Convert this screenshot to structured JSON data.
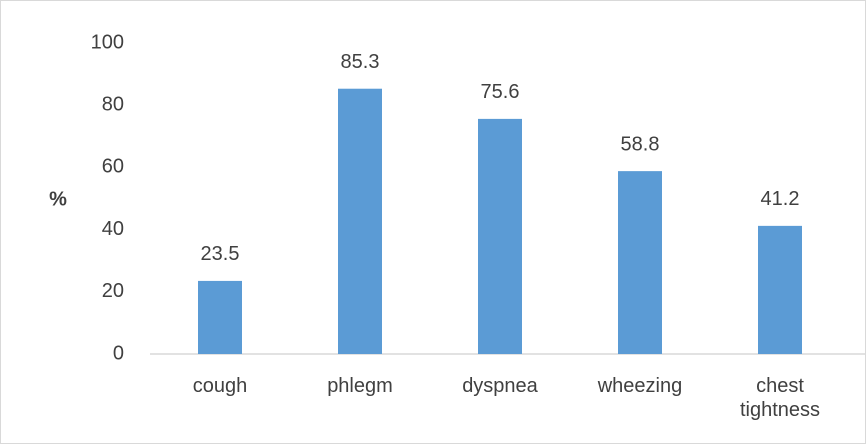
{
  "chart_data": {
    "type": "bar",
    "ylabel": "%",
    "categories": [
      "cough",
      "phlegm",
      "dyspnea",
      "wheezing",
      "chest tightness"
    ],
    "values": [
      23.5,
      85.3,
      75.6,
      58.8,
      41.2
    ],
    "color": "#5b9bd5",
    "ylim": [
      0,
      100
    ],
    "yticks": [
      0,
      20,
      40,
      60,
      80,
      100
    ],
    "grid": false
  }
}
